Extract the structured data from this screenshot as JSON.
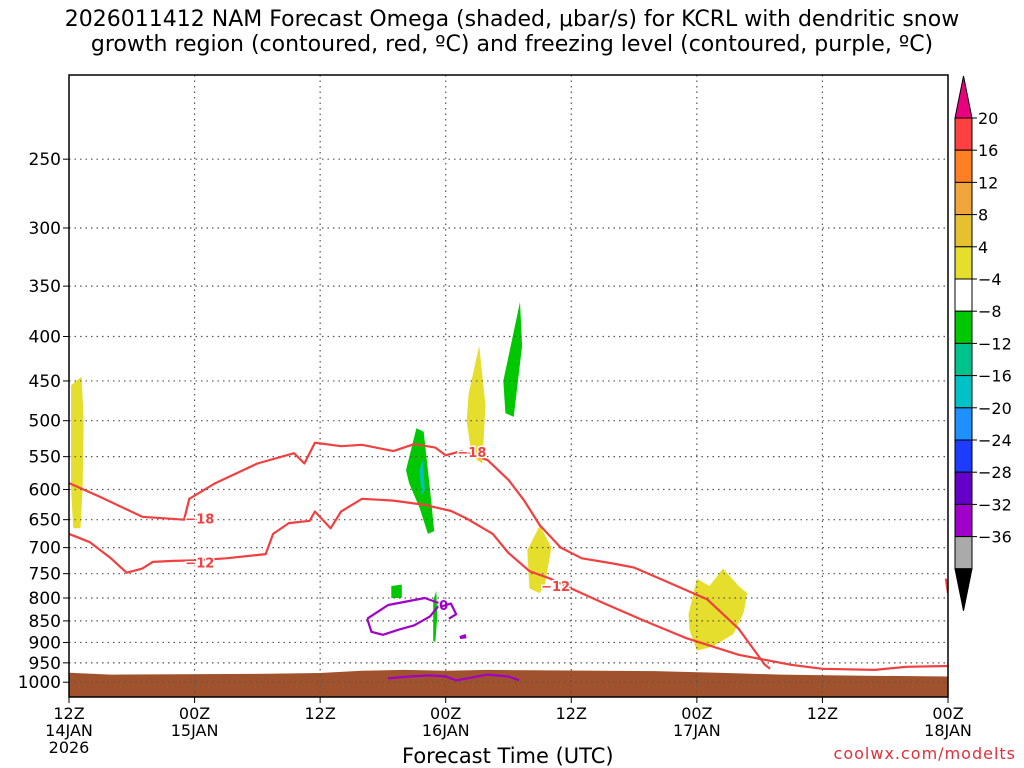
{
  "title_line1": "2026011412 NAM Forecast Omega (shaded, μbar/s) for KCRL with dendritic snow",
  "title_line2": "growth region (contoured, red, ºC) and freezing level (contoured, purple, ºC)",
  "credit": "coolwx.com/modelts",
  "chart_data": {
    "type": "time-height cross-section",
    "xlabel": "Forecast Time (UTC)",
    "x_ticks": [
      {
        "h": 0,
        "lines": [
          "12Z",
          "14JAN",
          "2026"
        ]
      },
      {
        "h": 12,
        "lines": [
          "00Z",
          "15JAN"
        ]
      },
      {
        "h": 24,
        "lines": [
          "12Z"
        ]
      },
      {
        "h": 36,
        "lines": [
          "00Z",
          "16JAN"
        ]
      },
      {
        "h": 48,
        "lines": [
          "12Z"
        ]
      },
      {
        "h": 60,
        "lines": [
          "00Z",
          "17JAN"
        ]
      },
      {
        "h": 72,
        "lines": [
          "12Z"
        ]
      },
      {
        "h": 84,
        "lines": [
          "00Z",
          "18JAN"
        ]
      }
    ],
    "x_range_hours": [
      0,
      84
    ],
    "y_ticks": [
      250,
      300,
      350,
      400,
      450,
      500,
      550,
      600,
      650,
      700,
      750,
      800,
      850,
      900,
      950,
      1000
    ],
    "y_range_hPa": [
      200,
      1040
    ],
    "y_scale": "log-pressure",
    "grid": true,
    "colorbar": {
      "labels": [
        "20",
        "16",
        "12",
        "8",
        "4",
        "−4",
        "−8",
        "−12",
        "−16",
        "−20",
        "−24",
        "−28",
        "−32",
        "−36"
      ],
      "colors": [
        "#e8007f",
        "#ff4040",
        "#ff7f22",
        "#f0a63a",
        "#e6c12e",
        "#e5de2c",
        "#ffffff",
        "#00c800",
        "#00c38c",
        "#00c1c6",
        "#1e90ff",
        "#1e3cff",
        "#6400c8",
        "#a000c8",
        "#aaaaaa",
        "#000000"
      ]
    },
    "contours": [
      {
        "level": "-18",
        "color": "#f04040",
        "points": [
          [
            0,
            590
          ],
          [
            3,
            612
          ],
          [
            7,
            645
          ],
          [
            11,
            650
          ],
          [
            11.5,
            615
          ],
          [
            14,
            590
          ],
          [
            18,
            560
          ],
          [
            21.5,
            545
          ],
          [
            22.5,
            560
          ],
          [
            23.5,
            530
          ],
          [
            26,
            535
          ],
          [
            28,
            533
          ],
          [
            31,
            542
          ],
          [
            33,
            532
          ],
          [
            35,
            537
          ],
          [
            36,
            548
          ],
          [
            37.5,
            542
          ],
          [
            40,
            555
          ],
          [
            42,
            585
          ],
          [
            43.5,
            618
          ],
          [
            45,
            660
          ],
          [
            47,
            700
          ],
          [
            49,
            720
          ],
          [
            52,
            730
          ],
          [
            54,
            738
          ],
          [
            57,
            765
          ],
          [
            61,
            803
          ],
          [
            64,
            868
          ],
          [
            66.5,
            955
          ],
          [
            67,
            965
          ]
        ],
        "labels": [
          {
            "text": "−18",
            "at": [
              12.5,
              648
            ]
          },
          {
            "text": "−18",
            "at": [
              38.5,
              543
            ]
          }
        ]
      },
      {
        "level": "-12",
        "color": "#f04040",
        "points": [
          [
            0,
            675
          ],
          [
            2,
            690
          ],
          [
            4,
            720
          ],
          [
            5.5,
            748
          ],
          [
            7,
            740
          ],
          [
            8,
            727
          ],
          [
            10,
            725
          ],
          [
            12,
            724
          ],
          [
            15,
            720
          ],
          [
            18.8,
            712
          ],
          [
            19.5,
            675
          ],
          [
            21,
            656
          ],
          [
            23,
            652
          ],
          [
            23.5,
            636
          ],
          [
            25,
            665
          ],
          [
            26,
            636
          ],
          [
            28,
            615
          ],
          [
            31,
            618
          ],
          [
            34,
            625
          ],
          [
            36.5,
            635
          ],
          [
            38,
            648
          ],
          [
            40.5,
            675
          ],
          [
            42,
            710
          ],
          [
            44,
            745
          ],
          [
            46,
            760
          ],
          [
            48,
            780
          ],
          [
            51,
            810
          ],
          [
            55,
            850
          ],
          [
            59,
            890
          ],
          [
            64,
            930
          ],
          [
            69,
            955
          ],
          [
            72,
            965
          ],
          [
            77,
            968
          ],
          [
            80,
            960
          ],
          [
            84,
            958
          ]
        ],
        "labels": [
          {
            "text": "−12",
            "at": [
              12.5,
              728
            ]
          },
          {
            "text": "−12",
            "at": [
              46.5,
              775
            ]
          }
        ]
      },
      {
        "level": "-12 (edge)",
        "color": "#f04040",
        "points": [
          [
            83.8,
            760
          ],
          [
            84,
            790
          ]
        ]
      },
      {
        "level": "0",
        "color": "#a000c8",
        "points": [
          [
            28.5,
            845
          ],
          [
            30.5,
            815
          ],
          [
            34,
            800
          ],
          [
            35.5,
            812
          ],
          [
            34.5,
            840
          ],
          [
            33,
            860
          ],
          [
            31.5,
            870
          ],
          [
            30,
            882
          ],
          [
            28.9,
            875
          ],
          [
            28.5,
            845
          ]
        ],
        "labels": [
          {
            "text": "0",
            "at": [
              35.8,
              815
            ]
          }
        ]
      },
      {
        "level": "0 (b)",
        "color": "#a000c8",
        "points": [
          [
            35.6,
            818
          ],
          [
            36.5,
            812
          ],
          [
            37,
            835
          ],
          [
            36.3,
            845
          ]
        ]
      },
      {
        "level": "0 (c)",
        "color": "#a000c8",
        "points": [
          [
            30.5,
            990
          ],
          [
            32.5,
            985
          ],
          [
            34.5,
            982
          ],
          [
            36,
            985
          ],
          [
            37,
            995
          ],
          [
            38,
            990
          ],
          [
            40,
            980
          ],
          [
            42,
            985
          ],
          [
            43,
            995
          ]
        ]
      }
    ],
    "shaded_regions": [
      {
        "color": "#e5de2c",
        "points": [
          [
            0.2,
            455
          ],
          [
            1.2,
            445
          ],
          [
            1.4,
            500
          ],
          [
            1.3,
            600
          ],
          [
            1.1,
            665
          ],
          [
            0.4,
            665
          ],
          [
            0.2,
            600
          ]
        ]
      },
      {
        "color": "#e5de2c",
        "points": [
          [
            38.2,
            465
          ],
          [
            39.2,
            410
          ],
          [
            39.8,
            480
          ],
          [
            39.5,
            560
          ],
          [
            38.5,
            550
          ],
          [
            38,
            500
          ]
        ]
      },
      {
        "color": "#00c800",
        "points": [
          [
            41.5,
            450
          ],
          [
            43.1,
            365
          ],
          [
            43.3,
            410
          ],
          [
            42.5,
            495
          ],
          [
            41.7,
            490
          ]
        ]
      },
      {
        "color": "#00c800",
        "points": [
          [
            32.2,
            570
          ],
          [
            33.2,
            510
          ],
          [
            33.9,
            515
          ],
          [
            34.5,
            600
          ],
          [
            34.9,
            670
          ],
          [
            34.3,
            675
          ],
          [
            33.5,
            630
          ],
          [
            32.5,
            590
          ]
        ]
      },
      {
        "color": "#00c1c6",
        "points": [
          [
            33.5,
            570
          ],
          [
            33.8,
            555
          ],
          [
            34,
            600
          ],
          [
            33.7,
            610
          ]
        ]
      },
      {
        "color": "#e5de2c",
        "points": [
          [
            43.8,
            705
          ],
          [
            45,
            660
          ],
          [
            46.1,
            700
          ],
          [
            45.5,
            770
          ],
          [
            45,
            790
          ],
          [
            44,
            780
          ]
        ]
      },
      {
        "color": "#e5de2c",
        "points": [
          [
            59.2,
            835
          ],
          [
            60,
            760
          ],
          [
            61.2,
            775
          ],
          [
            62.5,
            740
          ],
          [
            64,
            775
          ],
          [
            64.8,
            790
          ],
          [
            64.5,
            830
          ],
          [
            63.5,
            880
          ],
          [
            61.5,
            910
          ],
          [
            60,
            920
          ],
          [
            59.3,
            870
          ]
        ]
      },
      {
        "color": "#00c800",
        "points": [
          [
            30.8,
            775
          ],
          [
            31.8,
            772
          ],
          [
            31.8,
            800
          ],
          [
            30.8,
            800
          ]
        ]
      },
      {
        "color": "#00c800",
        "points": [
          [
            34.8,
            805
          ],
          [
            35.1,
            785
          ],
          [
            35.2,
            840
          ],
          [
            35,
            900
          ],
          [
            34.8,
            895
          ]
        ]
      },
      {
        "color": "#a000c8",
        "points": [
          [
            37.3,
            885
          ],
          [
            37.9,
            880
          ],
          [
            38,
            890
          ],
          [
            37.4,
            892
          ]
        ]
      }
    ],
    "terrain": {
      "color": "#a0522d",
      "points": [
        [
          0,
          975
        ],
        [
          4,
          980
        ],
        [
          19,
          978
        ],
        [
          24,
          976
        ],
        [
          28,
          970
        ],
        [
          32,
          968
        ],
        [
          36,
          970
        ],
        [
          40,
          968
        ],
        [
          44,
          969
        ],
        [
          56,
          971
        ],
        [
          62,
          975
        ],
        [
          68,
          980
        ],
        [
          76,
          983
        ],
        [
          84,
          985
        ]
      ]
    }
  }
}
